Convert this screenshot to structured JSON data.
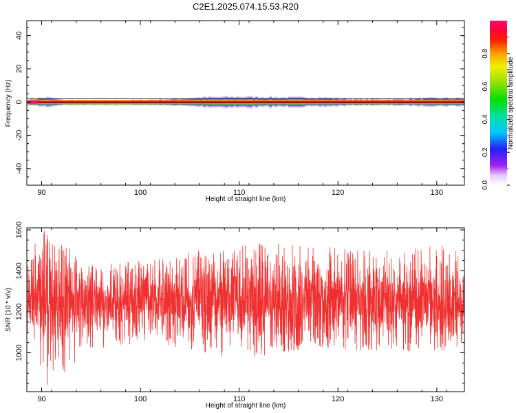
{
  "title": "C2E1.2025.074.15.53.R20",
  "chart_data": [
    {
      "type": "heatmap",
      "xlabel": "Height of straight line (km)",
      "ylabel": "Frequency (Hz)",
      "xlim": [
        88.5,
        132.8
      ],
      "ylim": [
        -50,
        49
      ],
      "xticks": [
        90,
        100,
        110,
        120,
        130
      ],
      "yticks": [
        -40,
        -20,
        0,
        20,
        40
      ],
      "band": {
        "center_frequency": 0,
        "core_halfwidth": 0.6,
        "profile": [
          {
            "x": 88.5,
            "halfwidth": 1.5
          },
          {
            "x": 89.5,
            "halfwidth": 2.5
          },
          {
            "x": 90.5,
            "halfwidth": 3.0
          },
          {
            "x": 92,
            "halfwidth": 1.5
          },
          {
            "x": 96,
            "halfwidth": 1.2
          },
          {
            "x": 100,
            "halfwidth": 1.5
          },
          {
            "x": 103,
            "halfwidth": 2.0
          },
          {
            "x": 106,
            "halfwidth": 3.0
          },
          {
            "x": 110,
            "halfwidth": 3.5
          },
          {
            "x": 114,
            "halfwidth": 3.0
          },
          {
            "x": 118,
            "halfwidth": 3.0
          },
          {
            "x": 122,
            "halfwidth": 1.8
          },
          {
            "x": 126,
            "halfwidth": 2.0
          },
          {
            "x": 129,
            "halfwidth": 2.5
          },
          {
            "x": 132.8,
            "halfwidth": 2.5
          }
        ]
      },
      "colorbar": {
        "label": "Normalized spectral amplitude",
        "range": [
          0,
          1
        ],
        "ticks": [
          "0.0",
          "0.2",
          "0.4",
          "0.6",
          "0.8"
        ]
      }
    },
    {
      "type": "line",
      "xlabel": "Height of straight line (km)",
      "ylabel": "SNR (10 * v/v)",
      "xlim": [
        88.5,
        132.8
      ],
      "ylim": [
        810,
        1610
      ],
      "xticks": [
        90,
        100,
        110,
        120,
        130
      ],
      "yticks": [
        1000,
        1200,
        1400,
        1600
      ],
      "series": [
        {
          "color": "#f03030",
          "mean": 1250,
          "envelope": [
            {
              "x": 88.5,
              "lo": 1080,
              "hi": 1420
            },
            {
              "x": 89.5,
              "lo": 900,
              "hi": 1560
            },
            {
              "x": 90.5,
              "lo": 830,
              "hi": 1605
            },
            {
              "x": 91.5,
              "lo": 950,
              "hi": 1500
            },
            {
              "x": 92.5,
              "lo": 870,
              "hi": 1550
            },
            {
              "x": 94,
              "lo": 1000,
              "hi": 1420
            },
            {
              "x": 98,
              "lo": 1040,
              "hi": 1440
            },
            {
              "x": 102,
              "lo": 1040,
              "hi": 1460
            },
            {
              "x": 106,
              "lo": 1010,
              "hi": 1500
            },
            {
              "x": 110,
              "lo": 960,
              "hi": 1520
            },
            {
              "x": 114,
              "lo": 1000,
              "hi": 1550
            },
            {
              "x": 118,
              "lo": 1030,
              "hi": 1530
            },
            {
              "x": 122,
              "lo": 1010,
              "hi": 1500
            },
            {
              "x": 126,
              "lo": 1010,
              "hi": 1500
            },
            {
              "x": 130,
              "lo": 1000,
              "hi": 1540
            },
            {
              "x": 132.8,
              "lo": 1040,
              "hi": 1480
            }
          ]
        }
      ]
    }
  ]
}
